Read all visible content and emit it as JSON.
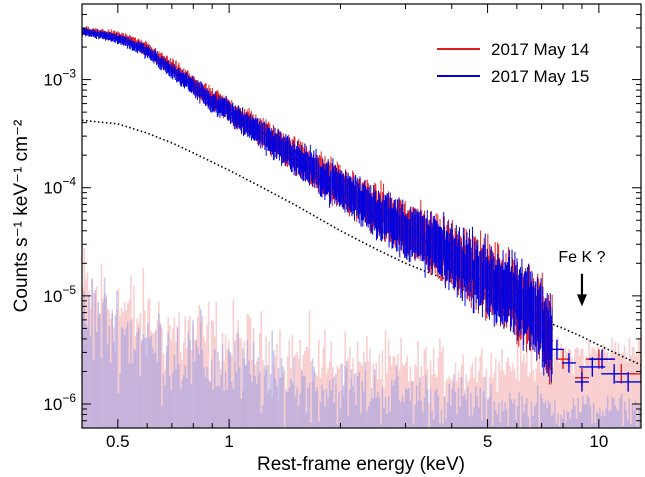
{
  "chart_data": {
    "type": "scatter",
    "title": "",
    "xlabel": "Rest-frame energy (keV)",
    "ylabel": "Counts s⁻¹ keV⁻¹ cm⁻²",
    "x_scale": "log",
    "y_scale": "log",
    "xlim": [
      0.4,
      13
    ],
    "ylim": [
      6e-07,
      0.005
    ],
    "x_ticks": [
      0.5,
      1,
      5,
      10
    ],
    "x_tick_labels": [
      "0.5",
      "1",
      "5",
      "10"
    ],
    "y_ticks": [
      1e-06,
      1e-05,
      0.0001,
      0.001
    ],
    "y_tick_labels": [
      {
        "base": "10",
        "exp": "−6"
      },
      {
        "base": "10",
        "exp": "−5"
      },
      {
        "base": "10",
        "exp": "−4"
      },
      {
        "base": "10",
        "exp": "−3"
      }
    ],
    "grid": false,
    "legend_position": "top-right",
    "series": [
      {
        "name": "2017 May 14",
        "color": "#e31a1c",
        "x": [
          0.4,
          0.45,
          0.5,
          0.55,
          0.6,
          0.7,
          0.8,
          0.9,
          1.0,
          1.2,
          1.5,
          2.0,
          2.5,
          3.0,
          3.5,
          4.0,
          5.0,
          6.0,
          7.0,
          8.0,
          9.0,
          10.0,
          11.5,
          13.0
        ],
        "y": [
          0.0028,
          0.0027,
          0.0025,
          0.0022,
          0.0019,
          0.0013,
          0.0009,
          0.00065,
          0.00052,
          0.00034,
          0.0002,
          0.0001,
          6.2e-05,
          4.2e-05,
          3.1e-05,
          2.4e-05,
          1.45e-05,
          9.2e-06,
          6e-06,
          2.6e-06,
          1.75e-06,
          2.6e-06,
          1.9e-06,
          1.9e-06
        ]
      },
      {
        "name": "2017 May 15",
        "color": "#0000e0",
        "x": [
          0.4,
          0.45,
          0.5,
          0.55,
          0.6,
          0.7,
          0.8,
          0.9,
          1.0,
          1.2,
          1.5,
          2.0,
          2.5,
          3.0,
          3.5,
          4.0,
          5.0,
          6.0,
          7.0,
          7.7,
          8.3,
          9.0,
          9.6,
          10.2,
          11.0,
          12.0
        ],
        "y": [
          0.0028,
          0.0026,
          0.0024,
          0.0021,
          0.0018,
          0.0012,
          0.00086,
          0.00062,
          0.0005,
          0.00033,
          0.00019,
          9.8e-05,
          6e-05,
          4e-05,
          3e-05,
          2.3e-05,
          1.4e-05,
          9e-06,
          6e-06,
          3.2e-06,
          2.4e-06,
          1.6e-06,
          2.2e-06,
          2.6e-06,
          1.9e-06,
          1.6e-06
        ]
      }
    ],
    "model_curve": {
      "style": "dotted",
      "color": "#000000",
      "x": [
        0.4,
        0.5,
        0.6,
        0.7,
        0.8,
        1.0,
        1.2,
        1.5,
        2.0,
        2.5,
        3.0,
        4.0,
        5.0,
        6.0,
        7.0,
        8.0,
        9.0,
        10.0,
        12.0,
        13.0
      ],
      "y": [
        0.00042,
        0.00039,
        0.00032,
        0.00026,
        0.00021,
        0.000145,
        0.000105,
        7e-05,
        4e-05,
        2.7e-05,
        2e-05,
        1.35e-05,
        1e-05,
        7.8e-06,
        6e-06,
        5e-06,
        4.2e-06,
        3.5e-06,
        2.6e-06,
        2.3e-06
      ]
    },
    "backgrounds": [
      {
        "series": "2017 May 14",
        "color": "#f4a6a6",
        "x": [
          0.4,
          0.5,
          0.6,
          0.8,
          1.0,
          1.2,
          1.5,
          2.0,
          2.5,
          3.0,
          4.0,
          5.0,
          6.0,
          8.0,
          10.0,
          13.0
        ],
        "y": [
          1.1e-05,
          8e-06,
          5.5e-06,
          4.2e-06,
          3.6e-06,
          3e-06,
          2.7e-06,
          2.4e-06,
          2.2e-06,
          2.1e-06,
          2.1e-06,
          2.2e-06,
          2.4e-06,
          2.8e-06,
          3.1e-06,
          3.3e-06
        ]
      },
      {
        "series": "2017 May 15",
        "color": "#9b9be6",
        "x": [
          0.4,
          0.5,
          0.6,
          0.8,
          1.0,
          1.2,
          1.5,
          2.0,
          2.5,
          3.0,
          4.0,
          5.0,
          6.0,
          8.0,
          10.0,
          13.0
        ],
        "y": [
          7e-06,
          5e-06,
          3.6e-06,
          2.6e-06,
          2.1e-06,
          1.8e-06,
          1.6e-06,
          1.4e-06,
          1.3e-06,
          1.2e-06,
          1.1e-06,
          1e-06,
          9.5e-07,
          9e-07,
          9e-07,
          9e-07
        ]
      }
    ],
    "annotations": [
      {
        "text": "Fe K ?",
        "arrow": "down",
        "x": 9.0,
        "y_tip": 8e-06,
        "y_tail": 1.6e-05
      }
    ]
  }
}
